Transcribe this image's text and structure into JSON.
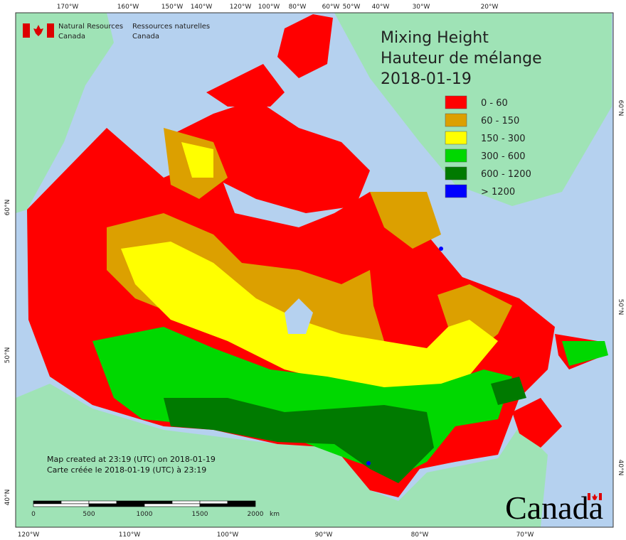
{
  "header": {
    "agency_en": [
      "Natural Resources",
      "Canada"
    ],
    "agency_fr": [
      "Ressources naturelles",
      "Canada"
    ]
  },
  "title": [
    "Mixing Height",
    "Hauteur de mélange",
    "2018-01-19"
  ],
  "legend": [
    {
      "label": "0 - 60",
      "color": "#ff0000"
    },
    {
      "label": "60 - 150",
      "color": "#dca000"
    },
    {
      "label": "150 - 300",
      "color": "#ffff00"
    },
    {
      "label": "300 - 600",
      "color": "#00d800"
    },
    {
      "label": "600 - 1200",
      "color": "#007a00"
    },
    {
      "label": "> 1200",
      "color": "#0000ff"
    }
  ],
  "top_longitudes": [
    "170°W",
    "160°W",
    "150°W",
    "140°W",
    "120°W",
    "100°W",
    "80°W",
    "60°W",
    "50°W",
    "40°W",
    "30°W",
    "20°W"
  ],
  "bottom_longitudes": [
    "120°W",
    "110°W",
    "100°W",
    "90°W",
    "80°W",
    "70°W"
  ],
  "left_latitudes": [
    "60°N",
    "50°N",
    "40°N"
  ],
  "right_latitudes": [
    "60°N",
    "50°N",
    "40°N"
  ],
  "scale": {
    "labels": [
      "0",
      "500",
      "1000",
      "1500",
      "2000"
    ],
    "unit": "km"
  },
  "footer": [
    "Map created at 23:19 (UTC) on 2018-01-19",
    "Carte créée le 2018-01-19 (UTC) à 23:19"
  ],
  "wordmark": "Canada"
}
